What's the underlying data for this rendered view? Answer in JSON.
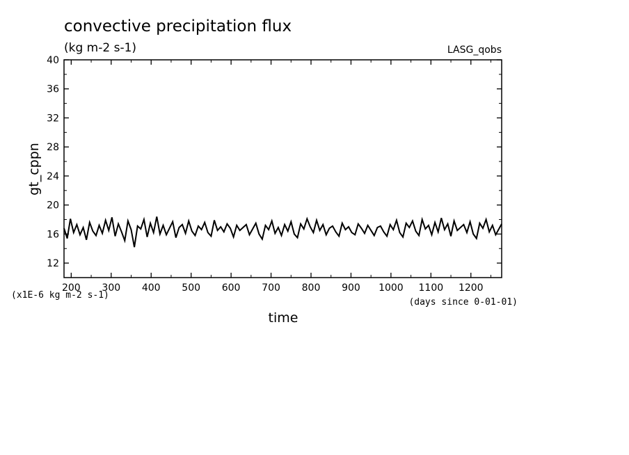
{
  "chart_data": {
    "type": "line",
    "title": "convective precipitation flux",
    "subtitle": "(kg m-2 s-1)",
    "tag": "LASG_qobs",
    "xlabel": "time",
    "ylabel": "gt_cppn",
    "y_scale_note": "(x1E-6 kg m-2 s-1)",
    "x_unit_note": "(days since 0-01-01)",
    "xlim": [
      182,
      1277
    ],
    "ylim": [
      10,
      40
    ],
    "x_ticks": [
      200,
      300,
      400,
      500,
      600,
      700,
      800,
      900,
      1000,
      1100,
      1200
    ],
    "x_tick_labels": [
      "200",
      "300",
      "400",
      "500",
      "600",
      "700",
      "800",
      "900",
      "1000",
      "1100",
      "1200"
    ],
    "y_ticks": [
      12,
      16,
      20,
      24,
      28,
      32,
      36,
      40
    ],
    "y_tick_labels": [
      "12",
      "16",
      "20",
      "24",
      "28",
      "32",
      "36",
      "40"
    ],
    "grid": false,
    "series": [
      {
        "color": "#000000",
        "x": [
          182,
          190,
          198,
          206,
          214,
          222,
          230,
          238,
          246,
          254,
          262,
          270,
          278,
          286,
          294,
          302,
          310,
          318,
          326,
          334,
          342,
          350,
          358,
          366,
          374,
          382,
          390,
          398,
          406,
          414,
          422,
          430,
          438,
          446,
          454,
          462,
          470,
          478,
          486,
          494,
          502,
          510,
          518,
          526,
          534,
          542,
          550,
          558,
          566,
          574,
          582,
          590,
          598,
          606,
          614,
          622,
          630,
          638,
          646,
          654,
          662,
          670,
          678,
          686,
          694,
          702,
          710,
          718,
          726,
          734,
          742,
          750,
          758,
          766,
          774,
          782,
          790,
          798,
          806,
          814,
          822,
          830,
          838,
          846,
          854,
          862,
          870,
          878,
          886,
          894,
          902,
          910,
          918,
          926,
          934,
          942,
          950,
          958,
          966,
          974,
          982,
          990,
          998,
          1006,
          1014,
          1022,
          1030,
          1038,
          1046,
          1054,
          1062,
          1070,
          1078,
          1086,
          1094,
          1102,
          1110,
          1118,
          1126,
          1134,
          1142,
          1150,
          1158,
          1166,
          1174,
          1182,
          1190,
          1198,
          1206,
          1214,
          1222,
          1230,
          1238,
          1246,
          1254,
          1262,
          1270,
          1277
        ],
        "y": [
          16.8,
          15.4,
          18.1,
          16.2,
          17.3,
          15.9,
          16.9,
          15.2,
          17.6,
          16.4,
          15.8,
          17.2,
          16.1,
          17.9,
          16.5,
          18.3,
          15.7,
          17.4,
          16.3,
          15.1,
          17.8,
          16.6,
          14.2,
          17.1,
          16.7,
          18.0,
          15.6,
          17.5,
          16.2,
          18.4,
          16.0,
          17.2,
          15.9,
          16.8,
          17.7,
          15.5,
          16.9,
          17.3,
          16.1,
          17.8,
          16.4,
          15.8,
          17.1,
          16.6,
          17.6,
          16.2,
          15.7,
          17.9,
          16.5,
          17.0,
          16.3,
          17.4,
          16.8,
          15.6,
          17.2,
          16.5,
          16.9,
          17.3,
          15.9,
          16.7,
          17.5,
          16.0,
          15.3,
          17.2,
          16.6,
          17.8,
          16.1,
          16.9,
          15.8,
          17.3,
          16.4,
          17.7,
          16.0,
          15.5,
          17.4,
          16.7,
          18.1,
          17.0,
          16.2,
          17.9,
          16.5,
          17.3,
          15.9,
          16.8,
          17.1,
          16.3,
          15.7,
          17.5,
          16.6,
          17.0,
          16.2,
          15.9,
          17.4,
          16.8,
          16.1,
          17.2,
          16.5,
          15.8,
          16.9,
          17.1,
          16.3,
          15.7,
          17.3,
          16.6,
          17.9,
          16.2,
          15.6,
          17.5,
          16.9,
          17.8,
          16.4,
          15.8,
          18.0,
          16.7,
          17.2,
          15.9,
          17.6,
          16.3,
          18.2,
          16.6,
          17.4,
          15.7,
          17.8,
          16.5,
          16.9,
          17.3,
          16.2,
          17.7,
          16.0,
          15.4,
          17.5,
          16.8,
          18.0,
          16.3,
          17.2,
          15.9,
          16.7,
          17.4
        ]
      }
    ]
  }
}
